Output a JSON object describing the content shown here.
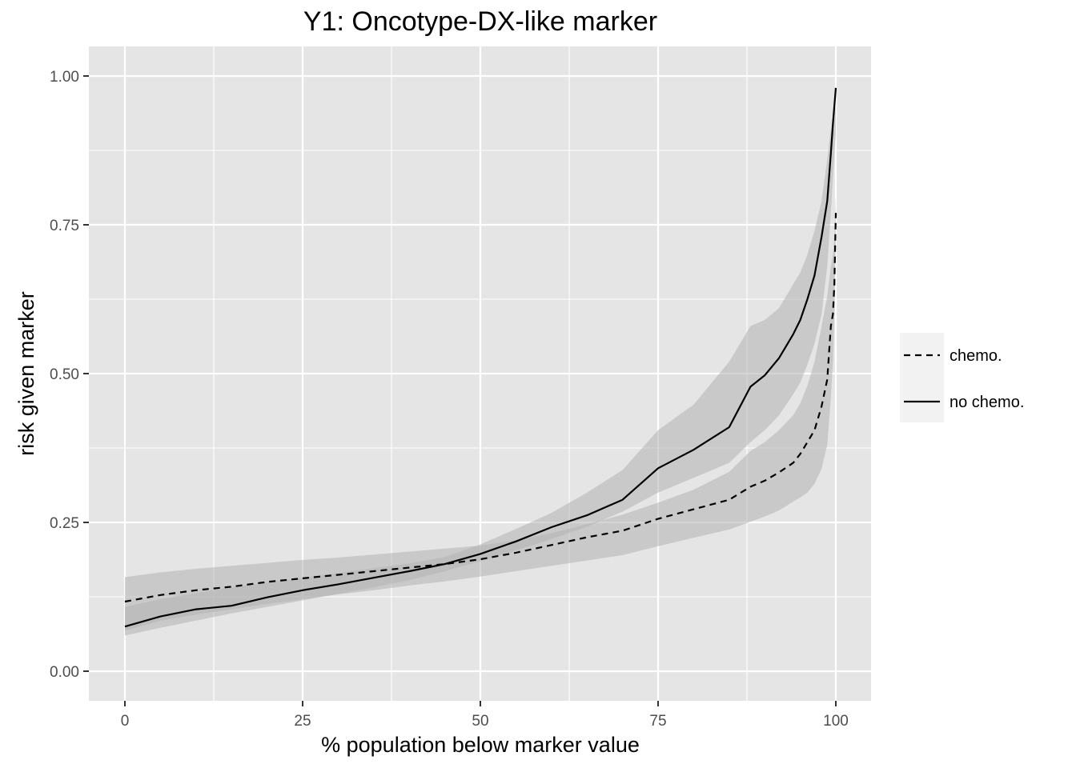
{
  "chart_data": {
    "type": "line",
    "title": "Y1: Oncotype-DX-like marker",
    "xlabel": "% population below marker value",
    "ylabel": "risk given marker",
    "xlim": [
      0,
      100
    ],
    "ylim": [
      0,
      1
    ],
    "x_ticks": [
      "0",
      "25",
      "50",
      "75",
      "100"
    ],
    "y_ticks": [
      "0.00",
      "0.25",
      "0.50",
      "0.75",
      "1.00"
    ],
    "grid": true,
    "legend_position": "right",
    "legend": [
      {
        "label": "chemo.",
        "linetype": "dashed"
      },
      {
        "label": "no chemo.",
        "linetype": "solid"
      }
    ],
    "colors": {
      "panel": "#e5e5e5",
      "grid": "#ffffff",
      "ribbon": "#b3b3b3",
      "line": "#000000",
      "legend_key": "#f2f2f2"
    },
    "series": [
      {
        "name": "chemo.",
        "linetype": "dashed",
        "x": [
          0,
          5,
          10,
          15,
          20,
          25,
          30,
          35,
          40,
          45,
          50,
          55,
          60,
          65,
          70,
          75,
          80,
          85,
          88,
          90,
          92,
          94,
          95,
          96,
          97,
          98,
          98.8,
          99.3,
          99.6,
          99.8,
          100
        ],
        "y": [
          0.117,
          0.128,
          0.136,
          0.142,
          0.15,
          0.156,
          0.162,
          0.168,
          0.174,
          0.18,
          0.188,
          0.199,
          0.212,
          0.225,
          0.236,
          0.256,
          0.272,
          0.288,
          0.31,
          0.32,
          0.334,
          0.35,
          0.365,
          0.385,
          0.405,
          0.445,
          0.49,
          0.58,
          0.6,
          0.65,
          0.77
        ],
        "lower": [
          0.068,
          0.085,
          0.095,
          0.104,
          0.113,
          0.121,
          0.129,
          0.136,
          0.144,
          0.151,
          0.159,
          0.168,
          0.177,
          0.186,
          0.195,
          0.21,
          0.224,
          0.238,
          0.251,
          0.26,
          0.27,
          0.285,
          0.292,
          0.3,
          0.315,
          0.34,
          0.38,
          0.46,
          0.52,
          0.6,
          0.72
        ],
        "upper": [
          0.158,
          0.166,
          0.172,
          0.177,
          0.182,
          0.187,
          0.191,
          0.196,
          0.201,
          0.206,
          0.211,
          0.22,
          0.232,
          0.247,
          0.263,
          0.283,
          0.305,
          0.335,
          0.37,
          0.385,
          0.405,
          0.43,
          0.45,
          0.48,
          0.52,
          0.58,
          0.63,
          0.68,
          0.7,
          0.73,
          0.8
        ]
      },
      {
        "name": "no chemo.",
        "linetype": "solid",
        "x": [
          0,
          5,
          10,
          15,
          20,
          25,
          30,
          35,
          40,
          45,
          50,
          55,
          60,
          65,
          70,
          75,
          80,
          85,
          88,
          90,
          92,
          94,
          95,
          96,
          97,
          98,
          98.8,
          99.3,
          99.6,
          99.8,
          100
        ],
        "y": [
          0.075,
          0.092,
          0.104,
          0.11,
          0.124,
          0.136,
          0.146,
          0.157,
          0.168,
          0.18,
          0.197,
          0.218,
          0.242,
          0.262,
          0.288,
          0.341,
          0.372,
          0.41,
          0.478,
          0.497,
          0.526,
          0.566,
          0.59,
          0.625,
          0.665,
          0.73,
          0.79,
          0.87,
          0.92,
          0.95,
          0.98
        ],
        "lower": [
          0.06,
          0.073,
          0.085,
          0.097,
          0.108,
          0.119,
          0.13,
          0.141,
          0.153,
          0.168,
          0.185,
          0.203,
          0.222,
          0.243,
          0.268,
          0.3,
          0.325,
          0.35,
          0.385,
          0.405,
          0.43,
          0.465,
          0.485,
          0.515,
          0.55,
          0.6,
          0.68,
          0.77,
          0.83,
          0.87,
          0.9
        ],
        "upper": [
          0.108,
          0.121,
          0.131,
          0.141,
          0.149,
          0.157,
          0.165,
          0.173,
          0.181,
          0.192,
          0.213,
          0.239,
          0.266,
          0.3,
          0.338,
          0.405,
          0.448,
          0.52,
          0.58,
          0.59,
          0.61,
          0.65,
          0.67,
          0.7,
          0.74,
          0.79,
          0.86,
          0.91,
          0.93,
          0.94,
          0.95
        ]
      }
    ]
  }
}
